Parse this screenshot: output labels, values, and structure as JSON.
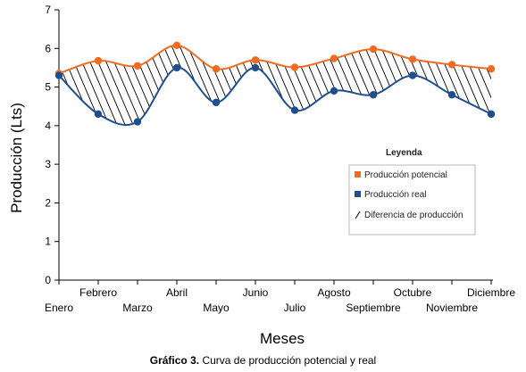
{
  "chart_data": {
    "type": "line",
    "categories": [
      "Enero",
      "Febrero",
      "Marzo",
      "Abril",
      "Mayo",
      "Junio",
      "Julio",
      "Agosto",
      "Septiembre",
      "Octubre",
      "Noviembre",
      "Diciembre"
    ],
    "series": [
      {
        "name": "Producción potencial",
        "color": "#f26b21",
        "values": [
          5.35,
          5.68,
          5.55,
          6.08,
          5.47,
          5.7,
          5.51,
          5.74,
          5.98,
          5.72,
          5.58,
          5.47
        ]
      },
      {
        "name": "Producción real",
        "color": "#1f4e8f",
        "values": [
          5.3,
          4.3,
          4.1,
          5.5,
          4.6,
          5.5,
          4.4,
          4.9,
          4.8,
          5.3,
          4.8,
          4.3
        ]
      }
    ],
    "difference_label": "Diferencia de producción",
    "legend_title": "Leyenda",
    "legend_position": "right",
    "xlabel": "Meses",
    "ylabel": "Producción (Lts)",
    "ylim": [
      0,
      7
    ],
    "yticks": [
      "0",
      "1",
      "2",
      "3",
      "4",
      "5",
      "6",
      "7"
    ],
    "grid": false
  },
  "caption": {
    "prefix": "Gráfico 3.",
    "text": " Curva  de producción  potencial  y real"
  }
}
